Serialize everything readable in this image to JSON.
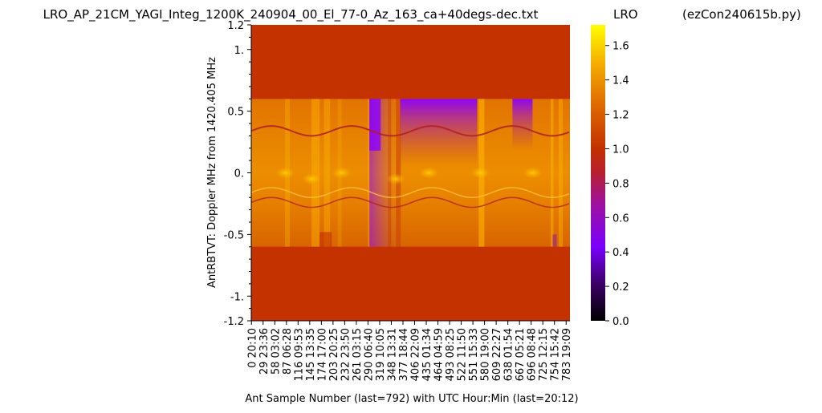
{
  "chart_data": {
    "type": "heatmap",
    "title": "LRO_AP_21CM_YAGI_Integ_1200K_240904_00_El_77-0_Az_163_ca+40degs-dec.txt",
    "title_right_a": "LRO",
    "title_right_b": "(ezCon240615b.py)",
    "xlabel": "Ant Sample Number (last=792) with UTC Hour:Min (last=20:12)",
    "ylabel": "AntRBTVT:  Doppler MHz from 1420.405 MHz",
    "ylim": [
      -1.2,
      1.2
    ],
    "y_ticks": [
      {
        "value": 1.2,
        "label": "1.2"
      },
      {
        "value": 1.0,
        "label": "1."
      },
      {
        "value": 0.5,
        "label": "0.5"
      },
      {
        "value": 0.0,
        "label": "0."
      },
      {
        "value": -0.5,
        "label": "-0.5"
      },
      {
        "value": -1.0,
        "label": "-1."
      },
      {
        "value": -1.2,
        "label": "-1.2"
      }
    ],
    "x_ticks": [
      "0  20:10",
      "29  23:36",
      "58  03:02",
      "87  06:28",
      "116  09:53",
      "145  13:35",
      "174  17:00",
      "203  20:25",
      "232  23:50",
      "261  03:15",
      "290  06:40",
      "319  10:05",
      "348  13:31",
      "377  18:44",
      "406  22:09",
      "435  01:34",
      "464  04:59",
      "493  08:25",
      "522  11:50",
      "551  15:33",
      "580  19:00",
      "609  22:27",
      "638  01:54",
      "667  05:21",
      "696  08:48",
      "725  12:15",
      "754  15:42",
      "783  19:09"
    ],
    "x_last": 792,
    "data_band": {
      "ymin": -0.6,
      "ymax": 0.6
    },
    "background_value": 1.0,
    "colorbar": {
      "colormap": "gnuplot",
      "range": [
        0.0,
        1.72
      ],
      "ticks": [
        "0.0",
        "0.2",
        "0.4",
        "0.6",
        "0.8",
        "1.0",
        "1.2",
        "1.4",
        "1.6"
      ]
    }
  }
}
